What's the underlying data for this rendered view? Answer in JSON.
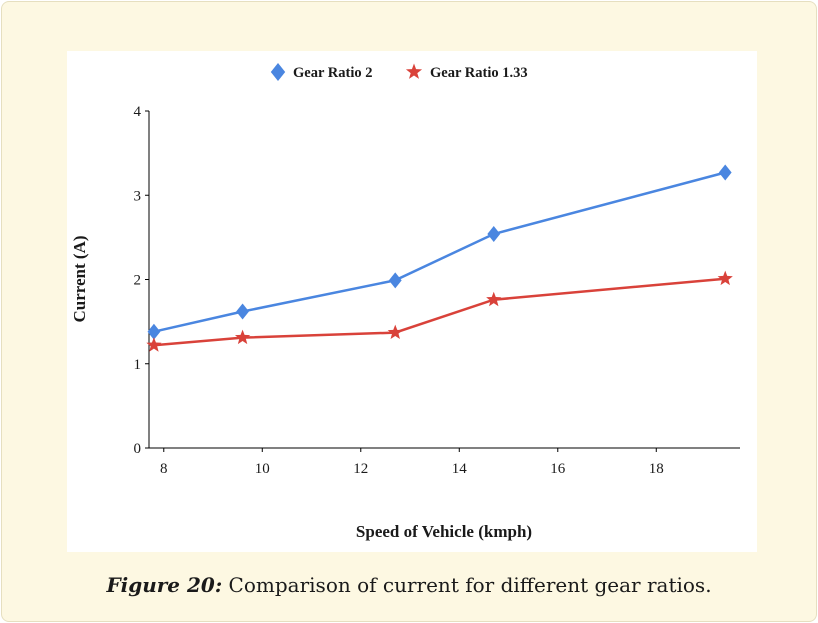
{
  "chart_data": {
    "type": "line",
    "title": "",
    "xlabel": "Speed of Vehicle (kmph)",
    "ylabel": "Current (A)",
    "xlim": [
      7.7,
      19.7
    ],
    "ylim": [
      0,
      4
    ],
    "xticks": [
      "8",
      "10",
      "12",
      "14",
      "16",
      "18"
    ],
    "yticks": [
      "0",
      "1",
      "2",
      "3",
      "4"
    ],
    "legend_position": "top-center",
    "grid": false,
    "series": [
      {
        "name": "Gear Ratio 2",
        "marker": "diamond",
        "color": "#4a86e0",
        "x": [
          7.8,
          9.6,
          12.7,
          14.7,
          19.4
        ],
        "y": [
          1.38,
          1.62,
          1.99,
          2.54,
          3.27
        ]
      },
      {
        "name": "Gear Ratio 1.33",
        "marker": "star",
        "color": "#d9423a",
        "x": [
          7.8,
          9.6,
          12.7,
          14.7,
          19.4
        ],
        "y": [
          1.22,
          1.31,
          1.37,
          1.76,
          2.01
        ]
      }
    ]
  },
  "caption": {
    "label": "Figure 20:",
    "text": " Comparison of current for different gear ratios."
  }
}
